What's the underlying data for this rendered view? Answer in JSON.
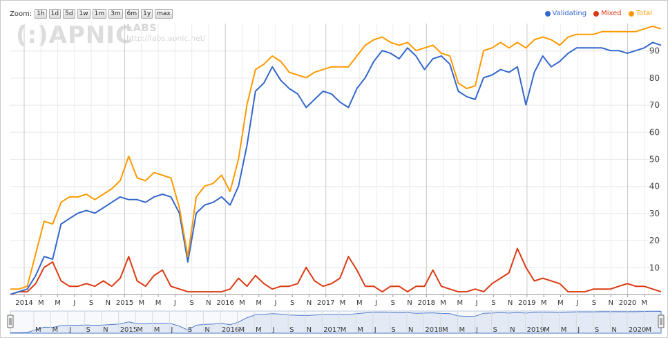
{
  "toolbar": {
    "zoom_label": "Zoom:",
    "buttons": [
      "1h",
      "1d",
      "5d",
      "1w",
      "1m",
      "3m",
      "6m",
      "1y",
      "max"
    ]
  },
  "watermark": {
    "logo": "(:)APNIC",
    "labs": "LABS",
    "url": "http://labs.apnic.net/"
  },
  "colors": {
    "validating": "#3366cc",
    "mixed": "#dc3912",
    "total": "#ff9900",
    "navigator_line": "#4a79c9",
    "navigator_fill": "#e3eaf6"
  },
  "chart_data": {
    "type": "line",
    "title": "",
    "xlabel": "",
    "ylabel": "",
    "ylim": [
      0,
      100
    ],
    "y_ticks": [
      10,
      20,
      30,
      40,
      50,
      60,
      70,
      80,
      90
    ],
    "grid": true,
    "legend_position": "top-right",
    "x_tick_labels": [
      "2014",
      "M",
      "M",
      "J",
      "S",
      "N",
      "2015",
      "M",
      "M",
      "J",
      "S",
      "N",
      "2016",
      "M",
      "M",
      "J",
      "S",
      "N",
      "2017",
      "M",
      "M",
      "J",
      "S",
      "N",
      "2018",
      "M",
      "M",
      "J",
      "S",
      "N",
      "2019",
      "M",
      "M",
      "J",
      "S",
      "N",
      "2020",
      "M"
    ],
    "navigator_tick_labels": [
      "M",
      "M",
      "J",
      "S",
      "N",
      "2015",
      "M",
      "M",
      "J",
      "S",
      "N",
      "2016",
      "M",
      "M",
      "J",
      "S",
      "N",
      "2017",
      "M",
      "M",
      "J",
      "S",
      "N",
      "2018",
      "M",
      "M",
      "J",
      "S",
      "N",
      "2019",
      "M",
      "M",
      "J",
      "S",
      "N",
      "2020",
      "M"
    ],
    "x": [
      "2013-12",
      "2014-01",
      "2014-02",
      "2014-03",
      "2014-04",
      "2014-05",
      "2014-06",
      "2014-07",
      "2014-08",
      "2014-09",
      "2014-10",
      "2014-11",
      "2014-12",
      "2015-01",
      "2015-02",
      "2015-03",
      "2015-04",
      "2015-05",
      "2015-06",
      "2015-07",
      "2015-08",
      "2015-09",
      "2015-10",
      "2015-11",
      "2015-12",
      "2016-01",
      "2016-02",
      "2016-03",
      "2016-04",
      "2016-05",
      "2016-06",
      "2016-07",
      "2016-08",
      "2016-09",
      "2016-10",
      "2016-11",
      "2016-12",
      "2017-01",
      "2017-02",
      "2017-03",
      "2017-04",
      "2017-05",
      "2017-06",
      "2017-07",
      "2017-08",
      "2017-09",
      "2017-10",
      "2017-11",
      "2017-12",
      "2018-01",
      "2018-02",
      "2018-03",
      "2018-04",
      "2018-05",
      "2018-06",
      "2018-07",
      "2018-08",
      "2018-09",
      "2018-10",
      "2018-11",
      "2018-12",
      "2019-01",
      "2019-02",
      "2019-03",
      "2019-04",
      "2019-05",
      "2019-06",
      "2019-07",
      "2019-08",
      "2019-09",
      "2019-10",
      "2019-11",
      "2019-12",
      "2020-01",
      "2020-02",
      "2020-03",
      "2020-04",
      "2020-05"
    ],
    "series": [
      {
        "name": "Validating",
        "values": [
          0,
          1,
          2,
          7,
          14,
          13,
          26,
          28,
          30,
          31,
          30,
          32,
          34,
          36,
          35,
          35,
          34,
          36,
          37,
          36,
          30,
          12,
          30,
          33,
          34,
          36,
          33,
          40,
          55,
          75,
          78,
          84,
          79,
          76,
          74,
          69,
          72,
          75,
          74,
          71,
          69,
          76,
          80,
          86,
          90,
          89,
          87,
          91,
          88,
          83,
          87,
          88,
          85,
          75,
          73,
          72,
          80,
          81,
          83,
          82,
          84,
          70,
          82,
          88,
          84,
          86,
          89,
          91,
          91,
          91,
          91,
          90,
          90,
          89,
          90,
          91,
          93,
          92
        ]
      },
      {
        "name": "Mixed",
        "values": [
          0,
          1,
          1,
          4,
          10,
          12,
          5,
          3,
          3,
          4,
          3,
          5,
          3,
          6,
          14,
          5,
          3,
          7,
          9,
          3,
          2,
          1,
          1,
          1,
          1,
          1,
          2,
          6,
          3,
          7,
          4,
          2,
          3,
          3,
          4,
          10,
          5,
          3,
          4,
          6,
          14,
          9,
          3,
          3,
          1,
          3,
          3,
          1,
          3,
          3,
          9,
          3,
          2,
          1,
          1,
          2,
          1,
          4,
          6,
          8,
          17,
          10,
          5,
          6,
          5,
          4,
          1,
          1,
          1,
          2,
          2,
          2,
          3,
          4,
          3,
          3,
          2,
          1
        ]
      },
      {
        "name": "Total",
        "values": [
          2,
          2,
          3,
          15,
          27,
          26,
          34,
          36,
          36,
          37,
          35,
          37,
          39,
          42,
          51,
          43,
          42,
          45,
          44,
          43,
          32,
          14,
          36,
          40,
          41,
          44,
          38,
          50,
          70,
          83,
          85,
          88,
          86,
          82,
          81,
          80,
          82,
          83,
          84,
          84,
          84,
          88,
          92,
          94,
          95,
          93,
          92,
          93,
          90,
          91,
          92,
          89,
          88,
          78,
          76,
          77,
          90,
          91,
          93,
          91,
          93,
          91,
          94,
          95,
          94,
          92,
          95,
          96,
          96,
          96,
          97,
          97,
          97,
          97,
          97,
          98,
          99,
          98
        ]
      }
    ]
  }
}
